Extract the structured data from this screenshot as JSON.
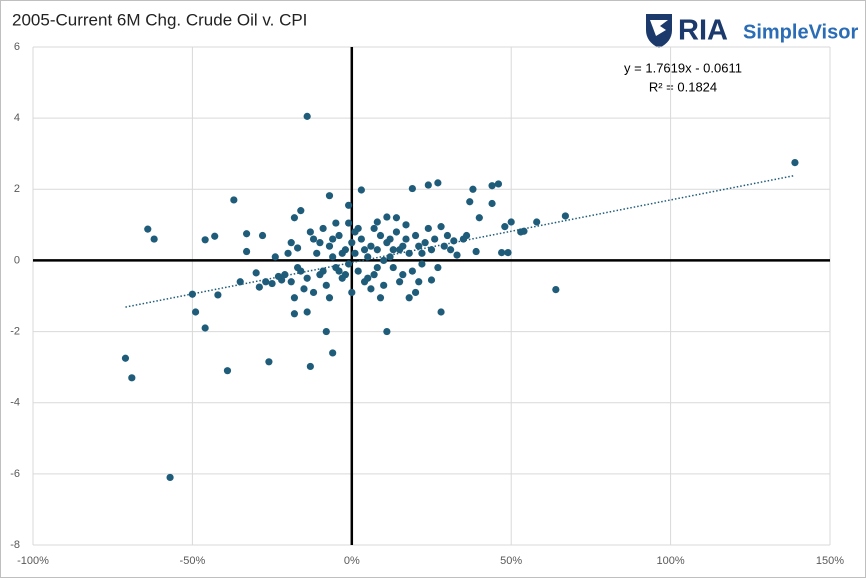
{
  "chart_data": {
    "type": "scatter",
    "title": "2005-Current 6M Chg. Crude Oil v. CPI",
    "color": "#1f5c7a",
    "x": [
      -71,
      -69,
      -57,
      -39,
      -26,
      -13,
      -6,
      -8,
      11,
      28,
      64,
      -50,
      -49,
      -46,
      -42,
      -64,
      -62,
      -46,
      -43,
      -37,
      -33,
      -28,
      -16,
      -18,
      -7,
      3,
      -1,
      19,
      24,
      27,
      38,
      37,
      44,
      46,
      44,
      40,
      67,
      58,
      54,
      53,
      48,
      50,
      49,
      47,
      39,
      33,
      35,
      36,
      32,
      11,
      14,
      8,
      -5,
      -1,
      -14,
      -18,
      -18,
      -7,
      9,
      6,
      18,
      20,
      25,
      -14,
      139,
      -33,
      -30,
      -29,
      -27,
      -25,
      -24,
      -22,
      -20,
      -19,
      -17,
      -16,
      -15,
      -13,
      -12,
      -11,
      -10,
      -9,
      -8,
      -7,
      -6,
      -5,
      -4,
      -3,
      -2,
      -1,
      0,
      0,
      1,
      2,
      3,
      4,
      5,
      6,
      7,
      8,
      9,
      10,
      11,
      12,
      13,
      14,
      15,
      16,
      17,
      18,
      19,
      20,
      21,
      22,
      23,
      24,
      25,
      26,
      27,
      28,
      29,
      30,
      31,
      -21,
      -19,
      -14,
      -12,
      -10,
      -3,
      2,
      5,
      8,
      12,
      15,
      17,
      21,
      13,
      -6,
      -9,
      -17,
      -23,
      -35,
      -4,
      1,
      10,
      7,
      -2,
      4,
      16,
      22
    ],
    "y": [
      -2.75,
      -3.3,
      -6.1,
      -3.1,
      -2.85,
      -2.98,
      -2.6,
      -2.0,
      -2.0,
      -1.45,
      -0.82,
      -0.95,
      -1.45,
      -1.9,
      -0.97,
      0.88,
      0.6,
      0.58,
      0.68,
      1.7,
      0.75,
      0.7,
      1.4,
      1.2,
      1.82,
      1.98,
      1.55,
      2.02,
      2.12,
      2.18,
      2.0,
      1.65,
      2.1,
      2.15,
      1.6,
      1.2,
      1.25,
      1.08,
      0.82,
      0.8,
      0.95,
      1.08,
      0.22,
      0.22,
      0.25,
      0.15,
      0.6,
      0.7,
      0.55,
      1.22,
      1.2,
      1.08,
      1.05,
      1.05,
      -1.45,
      -1.5,
      -1.05,
      -1.05,
      -1.05,
      -0.8,
      -1.05,
      -0.9,
      -0.55,
      4.05,
      2.75,
      0.25,
      -0.35,
      -0.75,
      -0.6,
      -0.65,
      0.1,
      -0.55,
      0.2,
      0.5,
      0.35,
      -0.3,
      -0.8,
      0.8,
      0.6,
      0.2,
      -0.4,
      0.9,
      -0.7,
      0.4,
      0.1,
      -0.2,
      0.7,
      -0.5,
      0.3,
      -0.1,
      0.5,
      -0.9,
      0.2,
      -0.3,
      0.6,
      -0.6,
      0.1,
      0.4,
      -0.4,
      0.3,
      0.7,
      -0.7,
      0.5,
      0.1,
      -0.2,
      0.8,
      0.3,
      -0.4,
      0.6,
      0.2,
      -0.3,
      0.7,
      0.4,
      -0.1,
      0.5,
      0.9,
      0.3,
      0.6,
      -0.2,
      0.95,
      0.4,
      0.7,
      0.3,
      -0.4,
      -0.6,
      -0.5,
      -0.9,
      0.5,
      0.2,
      0.9,
      -0.5,
      -0.2,
      0.6,
      -0.6,
      1.0,
      -0.6,
      0.3,
      0.6,
      -0.3,
      -0.2,
      -0.45,
      -0.6,
      -0.3,
      0.8,
      0.0,
      0.9,
      -0.4,
      0.3,
      0.4,
      0.2
    ],
    "xlim": [
      -100,
      150
    ],
    "xticks": [
      {
        "value": -100,
        "label": "-100%"
      },
      {
        "value": -50,
        "label": "-50%"
      },
      {
        "value": 0,
        "label": "0%"
      },
      {
        "value": 50,
        "label": "50%"
      },
      {
        "value": 100,
        "label": "100%"
      },
      {
        "value": 150,
        "label": "150%"
      }
    ],
    "ylim": [
      -8,
      6
    ],
    "yticks": [
      -8,
      -6,
      -4,
      -2,
      0,
      2,
      4,
      6
    ],
    "grid": true,
    "trendline": {
      "x": [
        -71,
        139
      ],
      "y": [
        -1.312,
        2.388
      ],
      "color": "#1f5c7a",
      "equation": "y = 1.7619x - 0.0611",
      "r_squared": "R² = 0.1824"
    }
  },
  "logo": {
    "brand": "RIA",
    "product": "SimpleVisor"
  }
}
